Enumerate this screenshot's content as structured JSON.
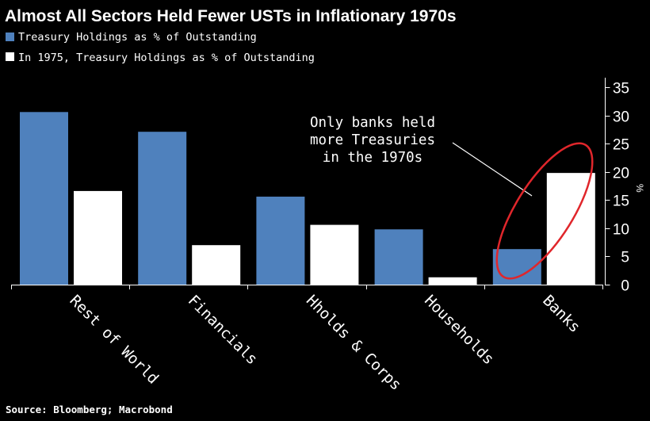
{
  "chart_data": {
    "type": "bar",
    "title": "Almost All Sectors Held Fewer USTs in Inflationary 1970s",
    "categories": [
      "Rest of World",
      "Financials",
      "Hholds & Corps",
      "Households",
      "Banks"
    ],
    "series": [
      {
        "name": "Treasury Holdings as % of Outstanding",
        "color": "#4f81bd",
        "values": [
          30.6,
          27.1,
          15.6,
          9.8,
          6.3
        ]
      },
      {
        "name": "In 1975, Treasury Holdings as % of Outstanding",
        "color": "#ffffff",
        "values": [
          16.6,
          7.0,
          10.6,
          1.3,
          19.8
        ]
      }
    ],
    "ylabel": "%",
    "ylim": [
      0,
      35
    ],
    "yticks": [
      0,
      5,
      10,
      15,
      20,
      25,
      30,
      35
    ],
    "y_axis_side": "right",
    "legend_position": "top-left",
    "annotation": {
      "lines": [
        "Only banks held",
        "more Treasuries",
        "in the 1970s"
      ],
      "highlight_category": "Banks",
      "highlight_color": "#e0262b"
    },
    "source": "Source: Bloomberg; Macrobond"
  }
}
